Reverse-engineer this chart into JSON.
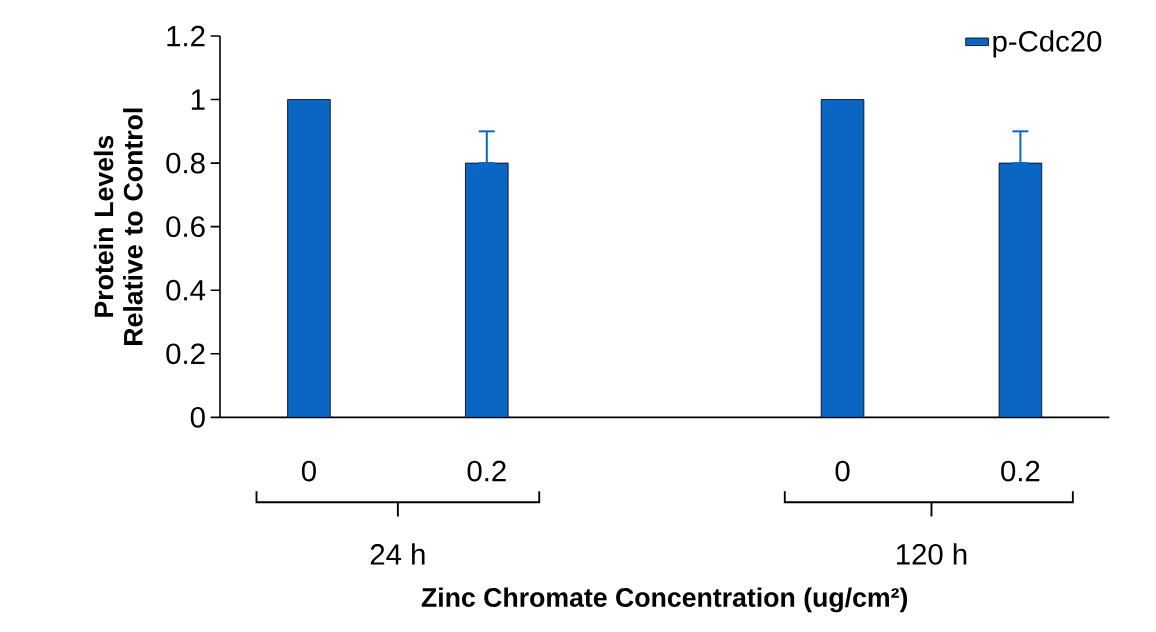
{
  "chart_data": {
    "type": "bar",
    "xlabel": "Zinc Chromate Concentration (ug/cm²)",
    "ylabel": "Protein Levels Relative to Control",
    "categories": [
      "0",
      "0.2",
      null,
      "0",
      "0.2"
    ],
    "series": [
      {
        "name": "p-Cdc20",
        "color": "#0a66c2",
        "values": [
          1,
          0.8,
          null,
          1,
          0.8
        ],
        "errors": [
          null,
          [
            0.8,
            0.9
          ],
          null,
          null,
          [
            0.8,
            0.9
          ]
        ]
      }
    ],
    "ylim": [
      0,
      1.2
    ],
    "yticks": [
      0,
      0.2,
      0.4,
      0.6,
      0.8,
      1,
      1.2
    ],
    "legend": "top right",
    "annotations": [
      "24 h",
      "120 h"
    ]
  }
}
